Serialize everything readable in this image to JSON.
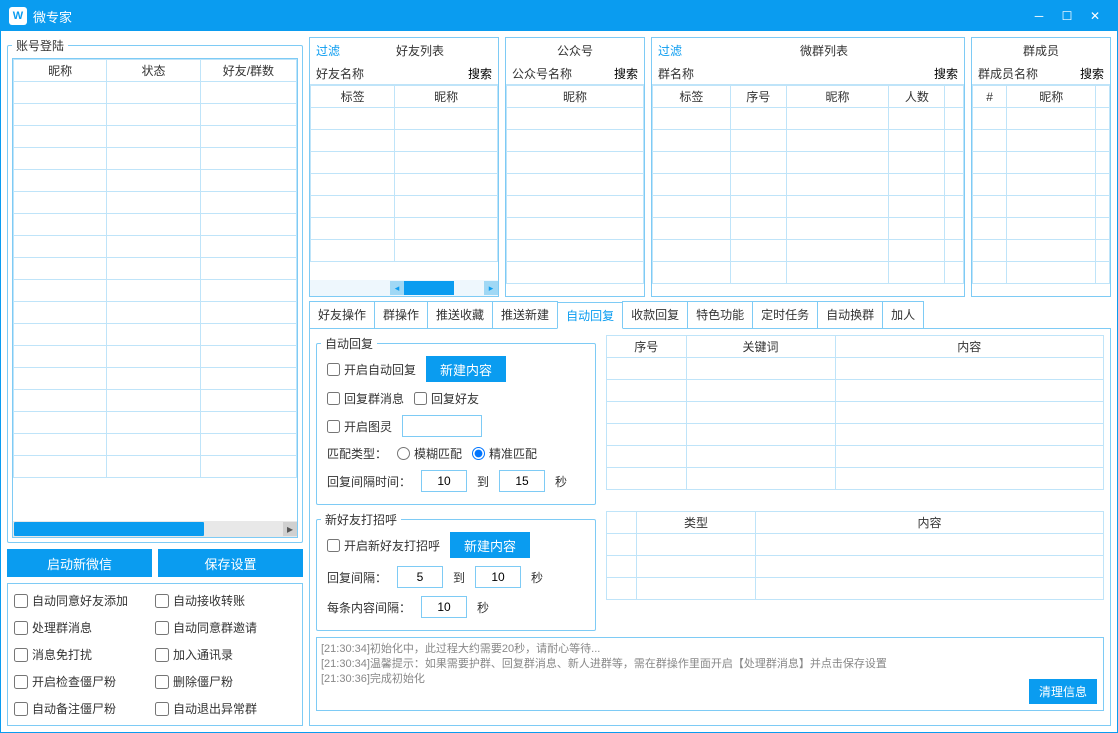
{
  "window": {
    "title": "微专家"
  },
  "accounts": {
    "legend": "账号登陆",
    "columns": [
      "昵称",
      "状态",
      "好友/群数"
    ]
  },
  "buttons": {
    "start_wechat": "启动新微信",
    "save_settings": "保存设置"
  },
  "options": {
    "auto_accept_friend": "自动同意好友添加",
    "auto_accept_transfer": "自动接收转账",
    "process_group_msg": "处理群消息",
    "auto_accept_group_invite": "自动同意群邀请",
    "msg_no_disturb": "消息免打扰",
    "add_contacts": "加入通讯录",
    "check_zombie": "开启检查僵尸粉",
    "delete_zombie": "删除僵尸粉",
    "auto_remark_zombie": "自动备注僵尸粉",
    "auto_quit_abnormal": "自动退出异常群"
  },
  "panels": {
    "friends": {
      "filter": "过滤",
      "title": "好友列表",
      "name_label": "好友名称",
      "search": "搜索",
      "columns": [
        "标签",
        "昵称"
      ]
    },
    "official": {
      "title": "公众号",
      "name_label": "公众号名称",
      "search": "搜索",
      "columns": [
        "昵称"
      ]
    },
    "groups": {
      "filter": "过滤",
      "title": "微群列表",
      "name_label": "群名称",
      "search": "搜索",
      "columns": [
        "标签",
        "序号",
        "昵称",
        "人数"
      ]
    },
    "members": {
      "title": "群成员",
      "name_label": "群成员名称",
      "search": "搜索",
      "columns": [
        "#",
        "昵称"
      ]
    }
  },
  "tabs": [
    "好友操作",
    "群操作",
    "推送收藏",
    "推送新建",
    "自动回复",
    "收款回复",
    "特色功能",
    "定时任务",
    "自动换群",
    "加人"
  ],
  "active_tab": 4,
  "auto_reply": {
    "legend": "自动回复",
    "enable": "开启自动回复",
    "new_content": "新建内容",
    "reply_group": "回复群消息",
    "reply_friend": "回复好友",
    "enable_tuling": "开启图灵",
    "match_label": "匹配类型：",
    "fuzzy": "模糊匹配",
    "exact": "精准匹配",
    "interval_label": "回复间隔时间：",
    "interval_from": "10",
    "to": "到",
    "interval_to": "15",
    "sec": "秒",
    "kw_cols": [
      "序号",
      "关键词",
      "内容"
    ]
  },
  "greet": {
    "legend": "新好友打招呼",
    "enable": "开启新好友打招呼",
    "new_content": "新建内容",
    "interval_label": "回复间隔：",
    "interval_from": "5",
    "to": "到",
    "interval_to": "10",
    "sec": "秒",
    "each_label": "每条内容间隔：",
    "each_val": "10",
    "type_cols": [
      "类型",
      "内容"
    ]
  },
  "log": {
    "lines": [
      "[21:30:34]初始化中，此过程大约需要20秒，请耐心等待...",
      "[21:30:34]温馨提示：如果需要护群、回复群消息、新人进群等，需在群操作里面开启【处理群消息】并点击保存设置",
      "[21:30:36]完成初始化"
    ],
    "clear": "清理信息"
  }
}
